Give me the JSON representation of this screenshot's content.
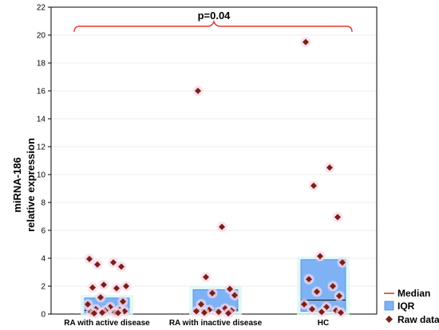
{
  "chart_data": {
    "type": "scatter",
    "ylabel_lines": [
      "miRNA-186",
      "relative expression"
    ],
    "ylim": [
      0,
      22
    ],
    "yticks": [
      0,
      2,
      4,
      6,
      8,
      10,
      12,
      14,
      16,
      18,
      20,
      22
    ],
    "categories": [
      "RA with active disease",
      "RA with inactive disease",
      "HC"
    ],
    "annotation": "p=0.04",
    "legend": {
      "position": "bottom-right",
      "median_label": "Median",
      "iqr_label": "IQR",
      "raw_label": "Raw data"
    },
    "colors": {
      "median": "#c0392b",
      "iqr_fill": "#7fb2f5",
      "iqr_border": "#4a86d6",
      "iqr_halo": "#d9f7f7",
      "point": "#7b1f14",
      "point_halo": "#f7d7ea",
      "bracket": "#e03a2f",
      "grid": "#dcdcdc"
    },
    "groups": [
      {
        "category": "RA with active disease",
        "median": 0.25,
        "q1": 0.1,
        "q3": 1.15,
        "points": [
          3.95,
          3.7,
          3.55,
          3.4,
          2.1,
          2.0,
          1.9,
          1.85,
          1.2,
          0.9,
          0.7,
          0.5,
          0.35,
          0.3,
          0.25,
          0.2,
          0.15,
          0.12,
          0.1,
          0.08,
          0.05
        ]
      },
      {
        "category": "RA with inactive disease",
        "median": 0.3,
        "q1": 0.2,
        "q3": 1.75,
        "points": [
          16.0,
          6.25,
          2.65,
          1.8,
          1.5,
          1.35,
          0.7,
          0.4,
          0.3,
          0.25,
          0.2,
          0.15,
          0.1,
          0.05
        ]
      },
      {
        "category": "HC",
        "median": 1.0,
        "q1": 0.2,
        "q3": 3.9,
        "points": [
          19.5,
          10.5,
          9.2,
          6.95,
          4.15,
          3.7,
          2.5,
          2.0,
          1.6,
          1.3,
          0.7,
          0.5,
          0.35,
          0.25,
          0.15,
          0.1
        ]
      }
    ]
  }
}
